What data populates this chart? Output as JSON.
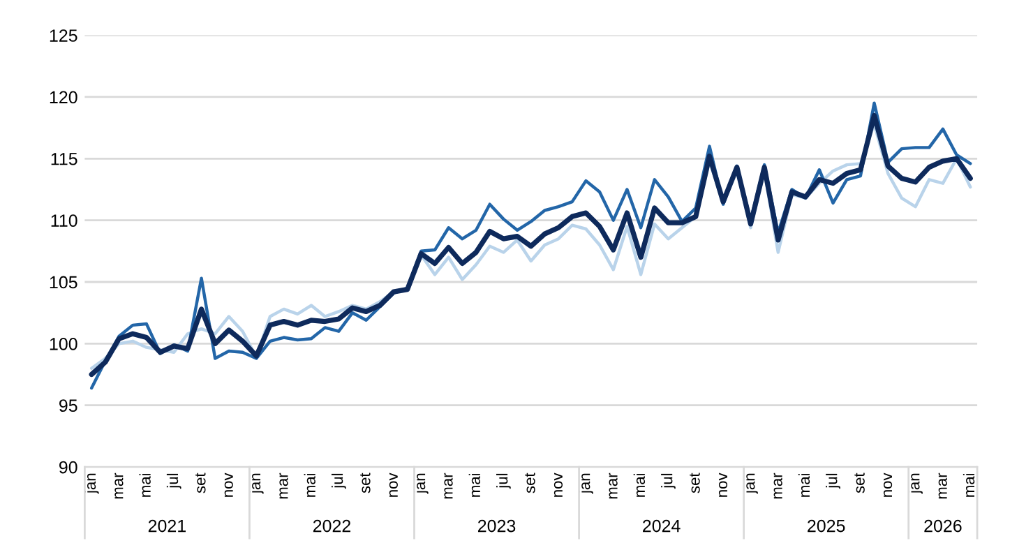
{
  "chart_data": {
    "type": "line",
    "categories": [
      "jan",
      null,
      "mar",
      null,
      "mai",
      null,
      "jul",
      null,
      "set",
      null,
      "nov",
      null,
      "jan",
      null,
      "mar",
      null,
      "mai",
      null,
      "jul",
      null,
      "set",
      null,
      "nov",
      null,
      "jan",
      null,
      "mar",
      null,
      "mai",
      null,
      "jul",
      null,
      "set",
      null,
      "nov",
      null,
      "jan",
      null,
      "mar",
      null,
      "mai",
      null,
      "jul",
      null,
      "set",
      null,
      "nov",
      null,
      "jan",
      null,
      "mar",
      null,
      "mai",
      null,
      "jul",
      null,
      "set",
      null,
      "nov",
      null,
      "jan",
      null,
      "mar",
      null,
      "mai"
    ],
    "series": [
      {
        "color": "#b9d3ea",
        "values": [
          98.0,
          98.8,
          100.0,
          100.2,
          99.7,
          99.5,
          99.3,
          100.8,
          101.2,
          100.8,
          102.2,
          101.0,
          98.9,
          102.2,
          102.8,
          102.4,
          103.1,
          102.2,
          102.6,
          103.1,
          102.8,
          103.4,
          104.2,
          104.5,
          107.2,
          105.6,
          107.0,
          105.2,
          106.4,
          107.9,
          107.4,
          108.4,
          106.7,
          108.0,
          108.5,
          109.6,
          109.3,
          108.0,
          106.0,
          109.5,
          105.6,
          109.7,
          108.5,
          109.4,
          110.3,
          114.8,
          111.4,
          114.0,
          109.4,
          114.0,
          107.4,
          112.1,
          111.8,
          113.0,
          114.0,
          114.5,
          114.6,
          117.8,
          113.8,
          111.8,
          111.1,
          113.3,
          113.0,
          115.0,
          112.7
        ]
      },
      {
        "color": "#2366a8",
        "values": [
          96.4,
          98.6,
          100.6,
          101.5,
          101.6,
          99.2,
          99.9,
          99.4,
          105.3,
          98.8,
          99.4,
          99.3,
          98.8,
          100.2,
          100.5,
          100.3,
          100.4,
          101.3,
          101.0,
          102.5,
          101.9,
          103.0,
          104.1,
          104.5,
          107.5,
          107.6,
          109.4,
          108.5,
          109.2,
          111.3,
          110.1,
          109.2,
          109.9,
          110.8,
          111.1,
          111.5,
          113.2,
          112.3,
          110.0,
          112.5,
          109.4,
          113.3,
          111.9,
          109.9,
          111.0,
          116.0,
          111.3,
          114.4,
          110.0,
          114.5,
          109.0,
          112.5,
          111.8,
          114.1,
          111.4,
          113.3,
          113.6,
          119.5,
          114.7,
          115.8,
          115.9,
          115.9,
          117.4,
          115.3,
          114.6
        ]
      },
      {
        "color": "#0e2a5c",
        "values": [
          97.5,
          98.5,
          100.4,
          100.8,
          100.5,
          99.3,
          99.8,
          99.6,
          102.8,
          100.0,
          101.1,
          100.2,
          99.0,
          101.5,
          101.8,
          101.5,
          101.9,
          101.8,
          102.0,
          102.9,
          102.6,
          103.1,
          104.2,
          104.4,
          107.3,
          106.5,
          107.8,
          106.5,
          107.4,
          109.1,
          108.5,
          108.7,
          107.9,
          108.9,
          109.4,
          110.3,
          110.6,
          109.5,
          107.6,
          110.6,
          107.0,
          111.0,
          109.8,
          109.8,
          110.3,
          115.2,
          111.5,
          114.3,
          109.7,
          114.3,
          108.4,
          112.3,
          111.9,
          113.3,
          113.0,
          113.8,
          114.1,
          118.5,
          114.4,
          113.4,
          113.1,
          114.3,
          114.8,
          115.0,
          113.4
        ]
      }
    ],
    "ylim": [
      90,
      125
    ],
    "yticks": [
      90,
      95,
      100,
      105,
      110,
      115,
      120,
      125
    ],
    "grid": "y",
    "legend": false,
    "marker": "none",
    "line_style": "solid",
    "annotations": [
      "2021",
      "2022",
      "2023",
      "2024",
      "2025",
      "2026"
    ]
  }
}
